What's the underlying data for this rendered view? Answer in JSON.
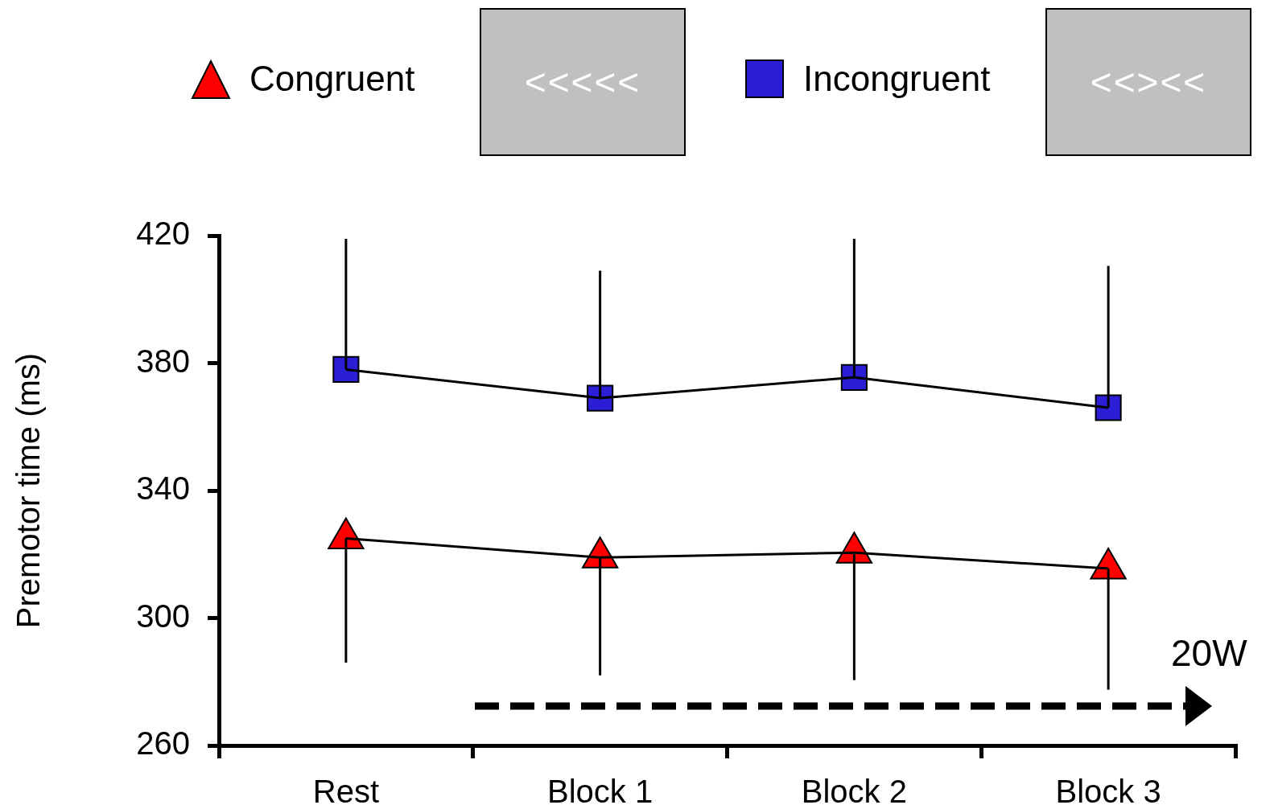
{
  "chart_data": {
    "type": "line",
    "ylabel": "Premotor time (ms)",
    "categories": [
      "Rest",
      "Block 1",
      "Block 2",
      "Block 3"
    ],
    "series": [
      {
        "name": "Congruent",
        "color": "#ff0000",
        "marker": "triangle",
        "values": [
          325,
          319,
          320.5,
          315.5
        ],
        "errors": [
          [
            286,
            325
          ],
          [
            282,
            319
          ],
          [
            280.5,
            320.5
          ],
          [
            277.5,
            315.5
          ]
        ]
      },
      {
        "name": "Incongruent",
        "color": "#2a1fd6",
        "marker": "square",
        "values": [
          378,
          369,
          375.5,
          366
        ],
        "errors": [
          [
            378,
            419
          ],
          [
            369,
            409
          ],
          [
            375.5,
            419
          ],
          [
            366,
            410.5
          ]
        ]
      }
    ],
    "ylim": [
      260,
      420
    ],
    "yticks": [
      260,
      300,
      340,
      380,
      420
    ],
    "grid": false,
    "legend": "top",
    "annotations": [
      "<<<<<",
      "<<><<",
      "20W"
    ]
  }
}
